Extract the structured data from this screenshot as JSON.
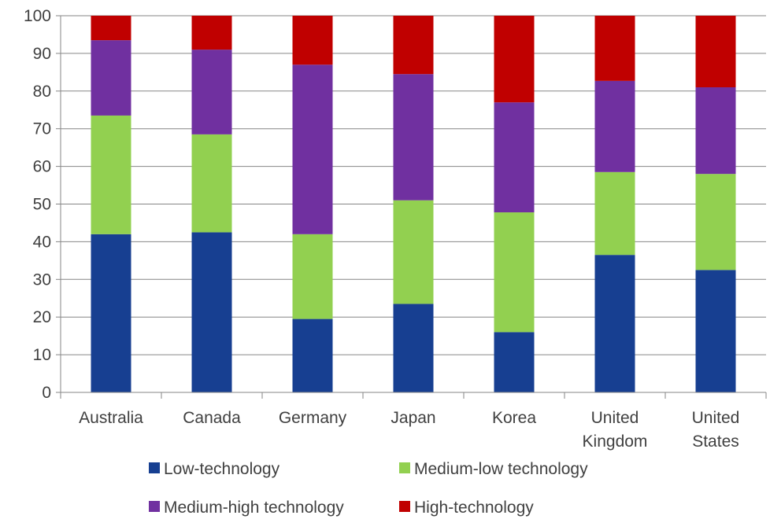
{
  "chart_data": {
    "type": "bar",
    "stacked": true,
    "categories": [
      [
        "Australia"
      ],
      [
        "Canada"
      ],
      [
        "Germany"
      ],
      [
        "Japan"
      ],
      [
        "Korea"
      ],
      [
        "United",
        "Kingdom"
      ],
      [
        "United",
        "States"
      ]
    ],
    "series": [
      {
        "name": "Low-technology",
        "color": "#173f91",
        "values": [
          42,
          42.5,
          19.5,
          23.5,
          16,
          36.5,
          32.5
        ]
      },
      {
        "name": "Medium-low technology",
        "color": "#92d050",
        "values": [
          31.5,
          26,
          22.5,
          27.5,
          31.8,
          22,
          25.5
        ]
      },
      {
        "name": "Medium-high technology",
        "color": "#7030a0",
        "values": [
          20,
          22.5,
          45,
          33.5,
          29.2,
          24.2,
          23
        ]
      },
      {
        "name": "High-technology",
        "color": "#c00000",
        "values": [
          6.5,
          9,
          13,
          15.5,
          23,
          17.3,
          19
        ]
      }
    ],
    "yticks": [
      0,
      10,
      20,
      30,
      40,
      50,
      60,
      70,
      80,
      90,
      100
    ],
    "ylim": [
      0,
      100
    ],
    "grid": true,
    "legend_position": "bottom"
  }
}
